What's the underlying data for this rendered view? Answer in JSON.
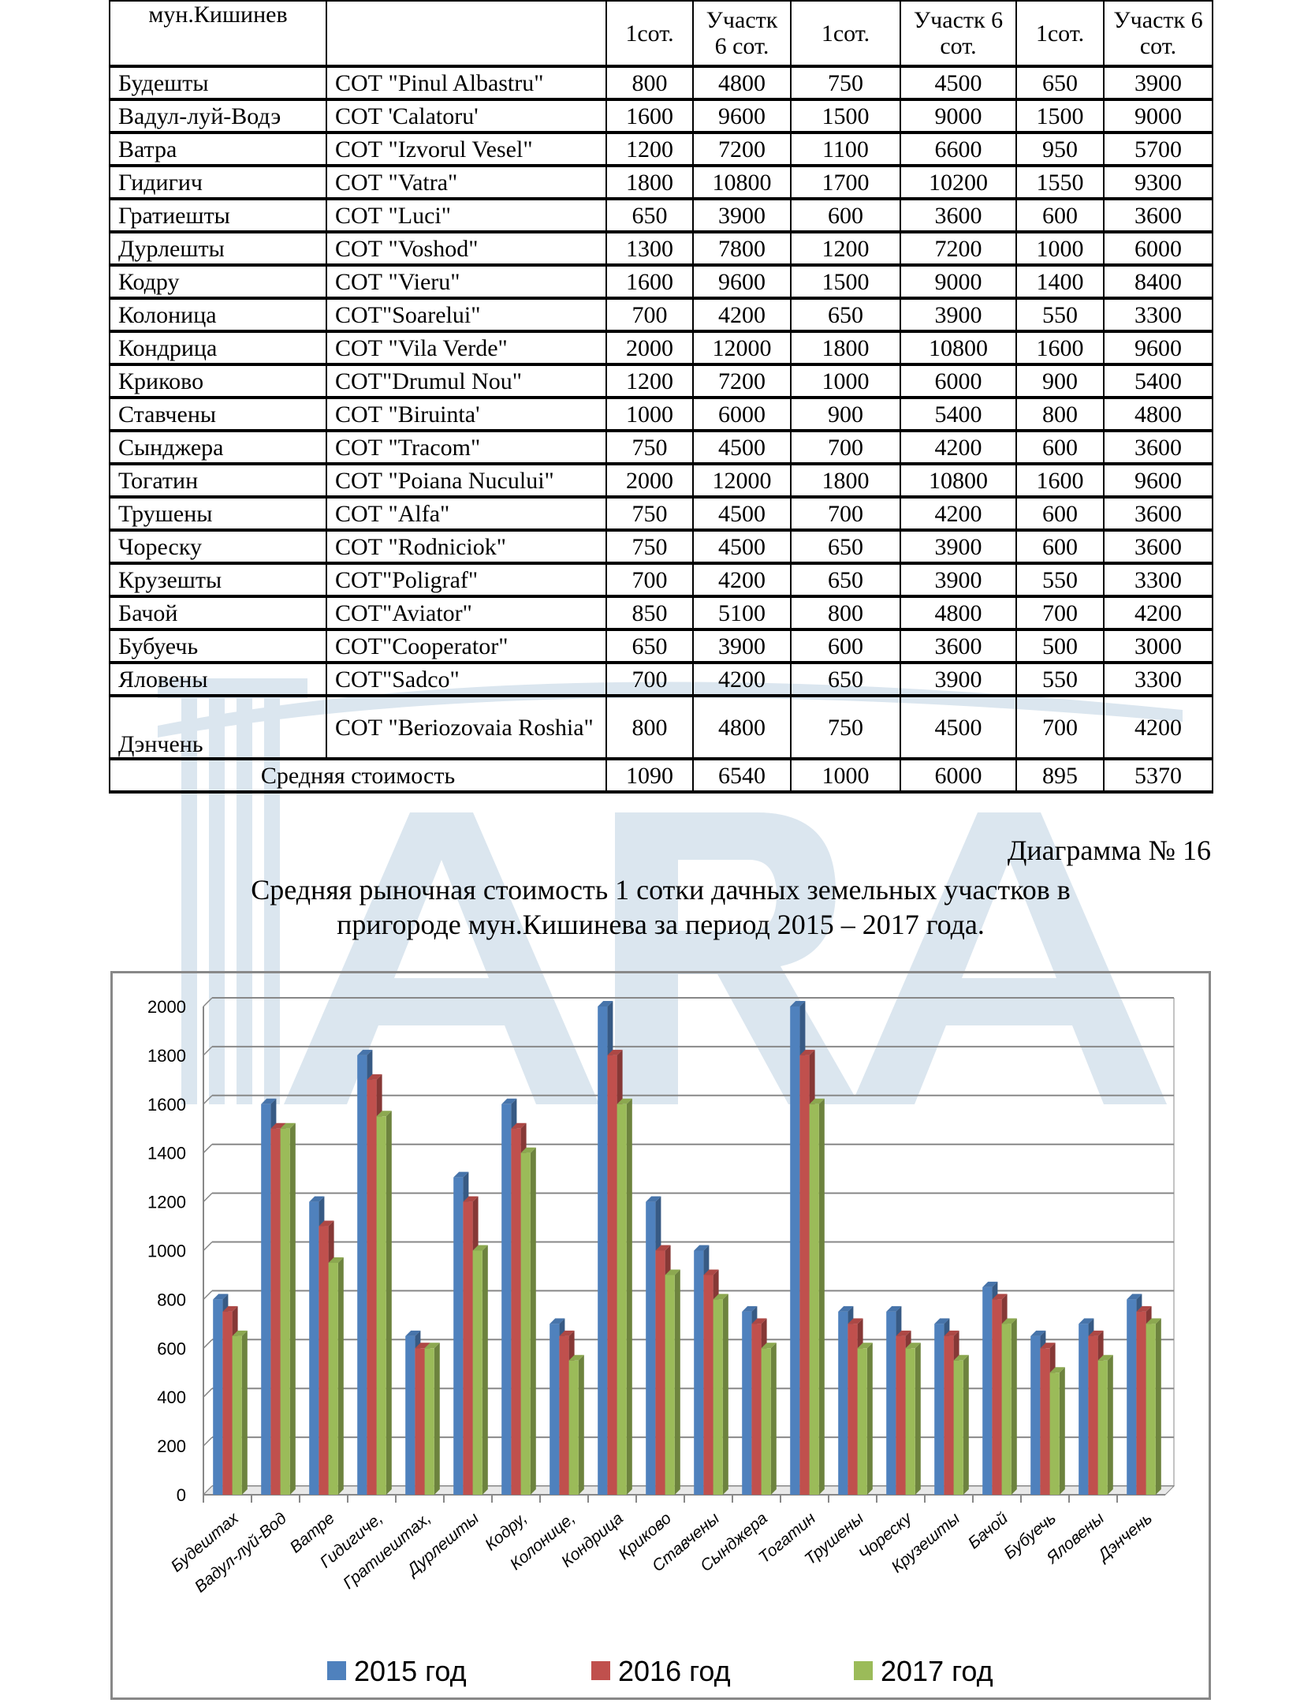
{
  "table": {
    "header": [
      "мун.Кишинев",
      "",
      "1сот.",
      "Участк 6 сот.",
      "1сот.",
      "Участк 6 сот.",
      "1сот.",
      "Участк 6 сот."
    ],
    "rows": [
      [
        "Будешты",
        "СОТ \"Pinul Albastru\"",
        "800",
        "4800",
        "750",
        "4500",
        "650",
        "3900"
      ],
      [
        "Вадул-луй-Водэ",
        "СОТ 'Calatoru'",
        "1600",
        "9600",
        "1500",
        "9000",
        "1500",
        "9000"
      ],
      [
        "Ватра",
        "СОТ \"Izvorul Vesel\"",
        "1200",
        "7200",
        "1100",
        "6600",
        "950",
        "5700"
      ],
      [
        "Гидигич",
        "СОТ \"Vatra\"",
        "1800",
        "10800",
        "1700",
        "10200",
        "1550",
        "9300"
      ],
      [
        "Гратиешты",
        "СОТ \"Luci\"",
        "650",
        "3900",
        "600",
        "3600",
        "600",
        "3600"
      ],
      [
        "Дурлешты",
        "СОТ \"Voshod\"",
        "1300",
        "7800",
        "1200",
        "7200",
        "1000",
        "6000"
      ],
      [
        "Кодру",
        "СОТ \"Vieru\"",
        "1600",
        "9600",
        "1500",
        "9000",
        "1400",
        "8400"
      ],
      [
        "Колоница",
        "СОТ\"Soarelui\"",
        "700",
        "4200",
        "650",
        "3900",
        "550",
        "3300"
      ],
      [
        "Кондрица",
        "СОТ \"Vila Verde\"",
        "2000",
        "12000",
        "1800",
        "10800",
        "1600",
        "9600"
      ],
      [
        "Криково",
        "СОТ\"Drumul Nou\"",
        "1200",
        "7200",
        "1000",
        "6000",
        "900",
        "5400"
      ],
      [
        "Ставчены",
        "СОТ \"Biruinta'",
        "1000",
        "6000",
        "900",
        "5400",
        "800",
        "4800"
      ],
      [
        "Сынджера",
        "СОТ \"Tracom\"",
        "750",
        "4500",
        "700",
        "4200",
        "600",
        "3600"
      ],
      [
        "Тогатин",
        "СОТ \"Poiana Nucului\"",
        "2000",
        "12000",
        "1800",
        "10800",
        "1600",
        "9600"
      ],
      [
        "Трушены",
        "СОТ \"Alfa\"",
        "750",
        "4500",
        "700",
        "4200",
        "600",
        "3600"
      ],
      [
        "Чореску",
        "СОТ \"Rodniciok\"",
        "750",
        "4500",
        "650",
        "3900",
        "600",
        "3600"
      ],
      [
        "Крузешты",
        "СОТ\"Poligraf\"",
        "700",
        "4200",
        "650",
        "3900",
        "550",
        "3300"
      ],
      [
        "Бачой",
        "СОТ\"Aviator\"",
        "850",
        "5100",
        "800",
        "4800",
        "700",
        "4200"
      ],
      [
        "Бубуечь",
        "СОТ\"Cooperator\"",
        "650",
        "3900",
        "600",
        "3600",
        "500",
        "3000"
      ],
      [
        "Яловены",
        "СОТ\"Sadco\"",
        "700",
        "4200",
        "650",
        "3900",
        "550",
        "3300"
      ],
      [
        "Дэнчень",
        "СОТ \"Beriozovaia Roshia\"",
        "800",
        "4800",
        "750",
        "4500",
        "700",
        "4200"
      ]
    ],
    "footer": [
      "Средняя стоимость",
      "1090",
      "6540",
      "1000",
      "6000",
      "895",
      "5370"
    ]
  },
  "caption": "Диаграмма № 16",
  "title_line1": "Средняя рыночная стоимость 1 сотки дачных земельных участков  в",
  "title_line2": "пригороде мун.Кишинева за период 2015 – 2017 года.",
  "watermark": "ARA",
  "chart_data": {
    "type": "bar",
    "categories": [
      "Будештах",
      "Вадул-луй-Вод",
      "Ватре",
      "Гидигиче,",
      "Гратиештах,",
      "Дурлешты",
      "Кодру,",
      "Колонице,",
      "Кондрица",
      "Криково",
      "Ставчены",
      "Сынджера",
      "Тогатин",
      "Трушены",
      "Чореску",
      "Крузешты",
      "Бачой",
      "Бубуечь",
      "Яловены",
      "Дэнчень"
    ],
    "series": [
      {
        "name": "2015 год",
        "color": "#4f81bd",
        "values": [
          800,
          1600,
          1200,
          1800,
          650,
          1300,
          1600,
          700,
          2000,
          1200,
          1000,
          750,
          2000,
          750,
          750,
          700,
          850,
          650,
          700,
          800
        ]
      },
      {
        "name": "2016 год",
        "color": "#c0504d",
        "values": [
          750,
          1500,
          1100,
          1700,
          600,
          1200,
          1500,
          650,
          1800,
          1000,
          900,
          700,
          1800,
          700,
          650,
          650,
          800,
          600,
          650,
          750
        ]
      },
      {
        "name": "2017 год",
        "color": "#9bbb59",
        "values": [
          650,
          1500,
          950,
          1550,
          600,
          1000,
          1400,
          550,
          1600,
          900,
          800,
          600,
          1600,
          600,
          600,
          550,
          700,
          500,
          550,
          700
        ]
      }
    ],
    "yticks": [
      "0",
      "200",
      "400",
      "600",
      "800",
      "1000",
      "1200",
      "1400",
      "1600",
      "1800",
      "2000"
    ],
    "ylim": [
      0,
      2000
    ],
    "grid": true,
    "legend": "bottom",
    "style": "3d-clustered-column"
  }
}
